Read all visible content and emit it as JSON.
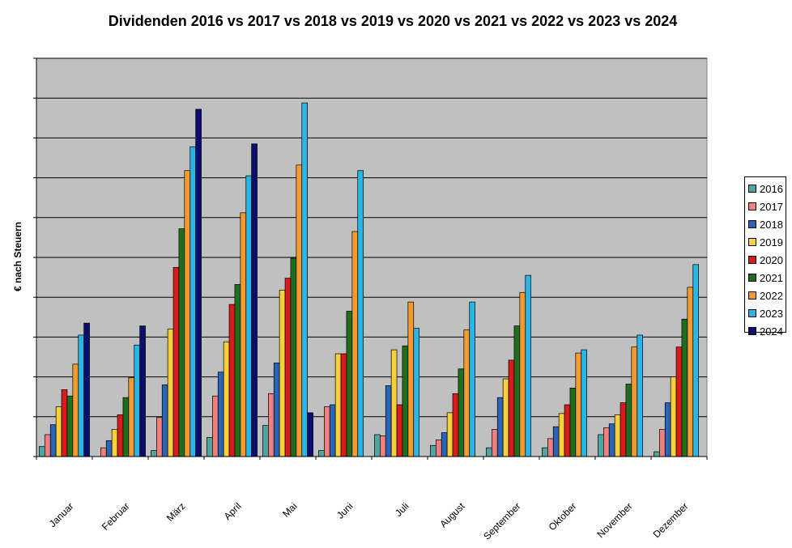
{
  "chart_data": {
    "type": "bar",
    "title": "Dividenden 2016 vs 2017 vs 2018 vs 2019 vs 2020 vs 2021 vs 2022 vs 2023 vs 2024",
    "ylabel": "€ nach Steuern",
    "xlabel": "",
    "ylim": [
      0,
      10
    ],
    "grid": true,
    "legend": "right",
    "categories": [
      "Januar",
      "Februar",
      "März",
      "April",
      "Mai",
      "Juni",
      "Juli",
      "August",
      "September",
      "Oktober",
      "November",
      "Dezember"
    ],
    "series": [
      {
        "name": "2016",
        "color": "#4fa5a0",
        "values": [
          0.25,
          0.0,
          0.15,
          0.48,
          0.78,
          0.15,
          0.55,
          0.28,
          0.22,
          0.22,
          0.55,
          0.12
        ]
      },
      {
        "name": "2017",
        "color": "#f08080",
        "values": [
          0.55,
          0.22,
          0.98,
          1.52,
          1.58,
          1.25,
          0.52,
          0.42,
          0.68,
          0.45,
          0.72,
          0.68
        ]
      },
      {
        "name": "2018",
        "color": "#2a64b8",
        "values": [
          0.8,
          0.4,
          1.8,
          2.12,
          2.35,
          1.3,
          1.78,
          0.6,
          1.48,
          0.75,
          0.82,
          1.35
        ]
      },
      {
        "name": "2019",
        "color": "#f6d13c",
        "values": [
          1.25,
          0.68,
          3.2,
          2.88,
          4.18,
          2.58,
          2.68,
          1.1,
          1.95,
          1.08,
          1.05,
          2.0
        ]
      },
      {
        "name": "2020",
        "color": "#d81b1b",
        "values": [
          1.68,
          1.05,
          4.75,
          3.82,
          4.48,
          2.58,
          1.3,
          1.58,
          2.42,
          1.3,
          1.35,
          2.75
        ]
      },
      {
        "name": "2021",
        "color": "#1e6e1e",
        "values": [
          1.52,
          1.48,
          5.72,
          4.32,
          4.98,
          3.65,
          2.78,
          2.2,
          3.28,
          1.72,
          1.82,
          3.45
        ]
      },
      {
        "name": "2022",
        "color": "#f49a30",
        "values": [
          2.32,
          1.98,
          7.18,
          6.12,
          7.32,
          5.65,
          3.88,
          3.18,
          4.12,
          2.6,
          2.75,
          4.25
        ]
      },
      {
        "name": "2023",
        "color": "#29b6e6",
        "values": [
          3.05,
          2.8,
          7.78,
          7.05,
          8.88,
          7.18,
          3.22,
          3.88,
          4.55,
          2.68,
          3.05,
          4.82
        ]
      },
      {
        "name": "2024",
        "color": "#0d0d6e",
        "values": [
          3.35,
          3.28,
          8.72,
          7.85,
          1.1,
          null,
          null,
          null,
          null,
          null,
          null,
          null
        ]
      }
    ]
  }
}
